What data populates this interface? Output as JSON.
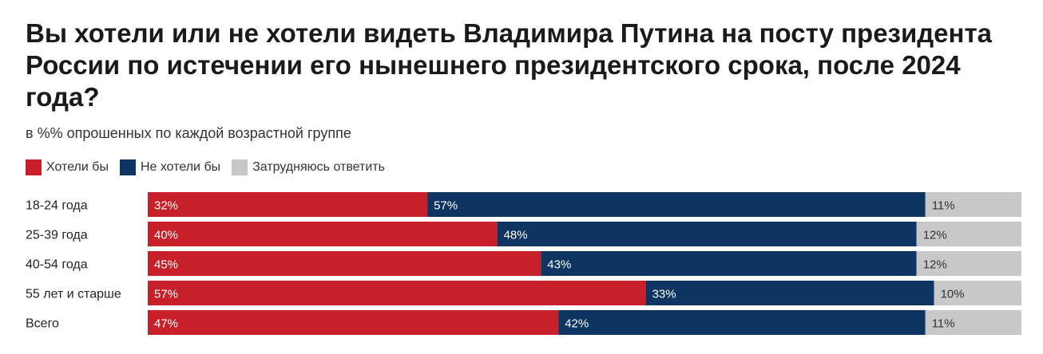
{
  "title": "Вы хотели или не хотели видеть Владимира Путина на посту президента России по истечении его нынешнего президентского срока, после 2024 года?",
  "subtitle": "в %% опрошенных по каждой возрастной группе",
  "chart_data": {
    "type": "bar",
    "orientation": "horizontal",
    "stacked": true,
    "percent_stacked": true,
    "categories": [
      "18-24 года",
      "25-39 года",
      "40-54 года",
      "55 лет и старше",
      "Всего"
    ],
    "series": [
      {
        "name": "Хотели бы",
        "color": "#c8202a",
        "label_color": "#ffffff",
        "values": [
          32,
          40,
          45,
          57,
          47
        ]
      },
      {
        "name": "Не хотели бы",
        "color": "#0e3462",
        "label_color": "#ffffff",
        "values": [
          57,
          48,
          43,
          33,
          42
        ]
      },
      {
        "name": "Затрудняюсь ответить",
        "color": "#c8c8c8",
        "label_color": "#333333",
        "values": [
          11,
          12,
          12,
          10,
          11
        ]
      }
    ],
    "value_suffix": "%",
    "legend_position": "top-left",
    "grid": false
  }
}
